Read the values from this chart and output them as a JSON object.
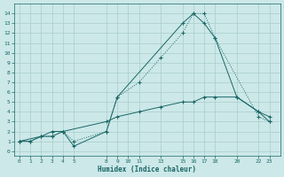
{
  "xlabel": "Humidex (Indice chaleur)",
  "bg_color": "#cce8e8",
  "line_color": "#1a6666",
  "grid_color": "#aacccc",
  "xlim": [
    -0.5,
    24
  ],
  "ylim": [
    -0.5,
    15
  ],
  "xticks": [
    0,
    1,
    2,
    3,
    4,
    5,
    8,
    9,
    10,
    11,
    13,
    15,
    16,
    17,
    18,
    20,
    22,
    23
  ],
  "yticks": [
    0,
    1,
    2,
    3,
    4,
    5,
    6,
    7,
    8,
    9,
    10,
    11,
    12,
    13,
    14
  ],
  "line1_x": [
    0,
    1,
    2,
    3,
    4,
    5,
    8,
    9,
    11,
    13,
    15,
    16,
    17,
    18,
    22,
    23
  ],
  "line1_y": [
    1,
    1,
    1.5,
    1.5,
    2,
    1,
    2,
    5.5,
    7,
    9.5,
    12,
    14,
    14,
    11.5,
    3.5,
    3
  ],
  "line2_x": [
    0,
    2,
    3,
    4,
    5,
    8,
    9,
    15,
    16,
    17,
    18,
    20,
    22,
    23
  ],
  "line2_y": [
    1,
    1.5,
    1.5,
    2,
    0.5,
    2,
    5.5,
    13,
    14,
    13,
    11.5,
    5.5,
    4,
    3.5
  ],
  "line3_x": [
    0,
    1,
    2,
    3,
    4,
    8,
    9,
    11,
    13,
    15,
    16,
    17,
    18,
    20,
    22,
    23
  ],
  "line3_y": [
    1,
    1,
    1.5,
    2,
    2,
    3,
    3.5,
    4,
    4.5,
    5,
    5,
    5.5,
    5.5,
    5.5,
    4,
    3
  ]
}
